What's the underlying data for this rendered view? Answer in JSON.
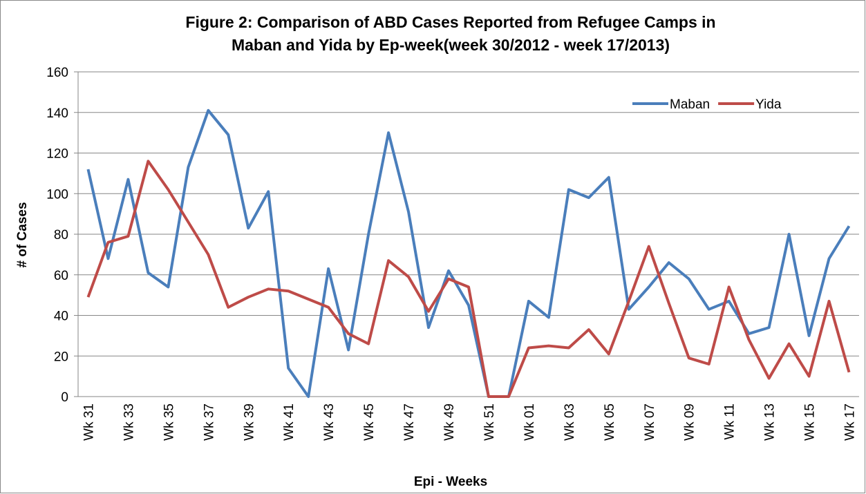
{
  "chart_data": {
    "type": "line",
    "title": [
      "Figure 2: Comparison of ABD Cases Reported from Refugee Camps in",
      "Maban and Yida by Ep-week(week 30/2012 - week 17/2013)"
    ],
    "x_label": "Epi - Weeks",
    "y_label": "# of Cases",
    "categories": [
      "Wk 31",
      null,
      "Wk 33",
      null,
      "Wk 35",
      null,
      "Wk 37",
      null,
      "Wk 39",
      null,
      "Wk 41",
      null,
      "Wk 43",
      null,
      "Wk 45",
      null,
      "Wk 47",
      null,
      "Wk 49",
      null,
      "Wk 51",
      null,
      "Wk 01",
      null,
      "Wk 03",
      null,
      "Wk 05",
      null,
      "Wk 07",
      null,
      "Wk 09",
      null,
      "Wk 11",
      null,
      "Wk 13",
      null,
      "Wk 15",
      null,
      "Wk 17"
    ],
    "series": [
      {
        "name": "Maban",
        "color": "#4a7ebb",
        "values": [
          112,
          68,
          107,
          61,
          54,
          113,
          141,
          129,
          83,
          101,
          14,
          0,
          63,
          23,
          80,
          130,
          91,
          34,
          62,
          45,
          0,
          0,
          47,
          39,
          102,
          98,
          108,
          43,
          54,
          66,
          58,
          43,
          47,
          31,
          34,
          80,
          30,
          68,
          84
        ]
      },
      {
        "name": "Yida",
        "color": "#be4b48",
        "values": [
          49,
          76,
          79,
          116,
          102,
          86,
          70,
          44,
          49,
          53,
          52,
          48,
          44,
          31,
          26,
          67,
          59,
          42,
          58,
          54,
          0,
          0,
          24,
          25,
          24,
          33,
          21,
          47,
          74,
          46,
          19,
          16,
          54,
          28,
          9,
          26,
          10,
          47,
          12
        ]
      }
    ],
    "ylim": [
      0,
      160
    ],
    "yticks": [
      0,
      20,
      40,
      60,
      80,
      100,
      120,
      140,
      160
    ],
    "grid": true,
    "legend": "top-right"
  }
}
